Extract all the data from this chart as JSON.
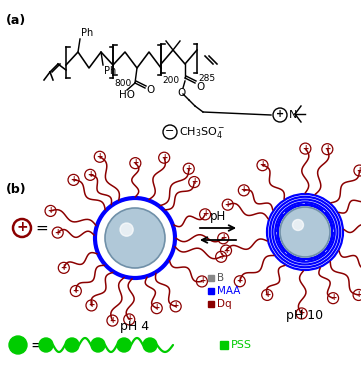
{
  "bg_color": "#ffffff",
  "panel_a_label": "(a)",
  "panel_b_label": "(b)",
  "subscript_800": "800",
  "subscript_200": "200",
  "subscript_285": "285",
  "ph4_label": "pH 4",
  "ph10_label": "pH 10",
  "ph_arrow_label": "pH",
  "legend_B": "B",
  "legend_MAA": "MAA",
  "legend_Dq": "Dq",
  "legend_PSS": "PSS",
  "color_B": "#888888",
  "color_MAA": "#0000ff",
  "color_Dq": "#8b0000",
  "color_PSS": "#00cc00",
  "color_dark": "#000000",
  "sphere_color_light": "#b0c8d8",
  "sphere_color_edge": "#7090a8",
  "fig_w": 3.61,
  "fig_h": 3.67,
  "dpi": 100
}
